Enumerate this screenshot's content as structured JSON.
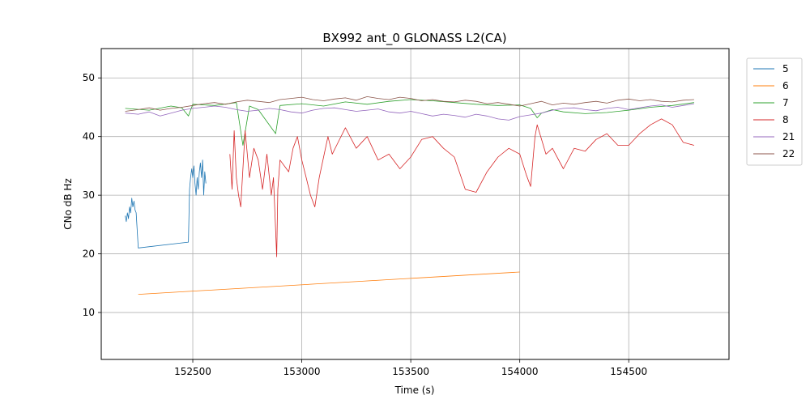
{
  "chart_data": {
    "type": "line",
    "title": "BX992 ant_0 GLONASS L2(CA)",
    "xlabel": "Time (s)",
    "ylabel": "CNo dB Hz",
    "xlim": [
      152080,
      154960
    ],
    "ylim": [
      2,
      55
    ],
    "xticks": [
      152500,
      153000,
      153500,
      154000,
      154500
    ],
    "yticks": [
      10,
      20,
      30,
      40,
      50
    ],
    "grid": true,
    "legend_position": "outside-top-right",
    "series": [
      {
        "name": "5",
        "color": "#1f77b4",
        "x": [
          152190,
          152195,
          152200,
          152205,
          152210,
          152215,
          152220,
          152225,
          152230,
          152235,
          152240,
          152245,
          152250,
          152480,
          152485,
          152490,
          152495,
          152500,
          152505,
          152510,
          152515,
          152520,
          152525,
          152530,
          152535,
          152540,
          152545,
          152550,
          152555,
          152560
        ],
        "y": [
          26.5,
          25.5,
          27,
          26,
          28,
          27,
          29.5,
          28,
          29,
          27.5,
          27,
          24,
          21,
          22,
          31,
          33,
          34.5,
          33,
          35,
          32,
          30,
          33,
          31,
          34,
          35.5,
          33,
          36,
          30,
          34,
          32
        ]
      },
      {
        "name": "6",
        "color": "#ff7f0e",
        "x": [
          152250,
          154000
        ],
        "y": [
          13.1,
          16.9
        ]
      },
      {
        "name": "7",
        "color": "#2ca02c",
        "x": [
          152190,
          152300,
          152400,
          152450,
          152480,
          152500,
          152600,
          152700,
          152730,
          152760,
          152800,
          152880,
          152900,
          153000,
          153100,
          153200,
          153300,
          153400,
          153500,
          153600,
          153700,
          153800,
          153900,
          154000,
          154050,
          154080,
          154100,
          154150,
          154200,
          154300,
          154400,
          154500,
          154600,
          154700,
          154800
        ],
        "y": [
          44.8,
          44.5,
          45.2,
          44.9,
          43.5,
          45.5,
          45.3,
          45.8,
          38.5,
          45.2,
          44.6,
          40.5,
          45.3,
          45.6,
          45.2,
          45.9,
          45.5,
          46.0,
          46.3,
          46.1,
          45.8,
          45.5,
          45.3,
          45.4,
          44.8,
          43.2,
          44.0,
          44.6,
          44.2,
          43.9,
          44.1,
          44.5,
          45.0,
          45.3,
          45.8
        ]
      },
      {
        "name": "8",
        "color": "#d62728",
        "x": [
          152670,
          152680,
          152690,
          152700,
          152710,
          152720,
          152740,
          152760,
          152780,
          152800,
          152820,
          152840,
          152860,
          152870,
          152880,
          152885,
          152890,
          152900,
          152920,
          152940,
          152960,
          152980,
          153000,
          153020,
          153040,
          153060,
          153080,
          153100,
          153120,
          153140,
          153160,
          153200,
          153250,
          153300,
          153350,
          153400,
          153450,
          153500,
          153550,
          153600,
          153650,
          153700,
          153750,
          153800,
          153850,
          153900,
          153950,
          154000,
          154030,
          154050,
          154070,
          154080,
          154100,
          154120,
          154150,
          154200,
          154250,
          154300,
          154350,
          154400,
          154450,
          154500,
          154550,
          154600,
          154650,
          154700,
          154750,
          154800
        ],
        "y": [
          37,
          31,
          41,
          33,
          30,
          28,
          41,
          33,
          38,
          36,
          31,
          37,
          30,
          33,
          24,
          19.5,
          31,
          36,
          35,
          34,
          38,
          40,
          36,
          33,
          30,
          28,
          33,
          36.5,
          40,
          37,
          38.5,
          41.5,
          38,
          40,
          36,
          37,
          34.5,
          36.5,
          39.5,
          40,
          38,
          36.5,
          31,
          30.5,
          34,
          36.5,
          38,
          37,
          33.5,
          31.5,
          40,
          42,
          39.5,
          37,
          38,
          34.5,
          38,
          37.5,
          39.5,
          40.5,
          38.5,
          38.5,
          40.5,
          42,
          43,
          42,
          39,
          38.5
        ]
      },
      {
        "name": "21",
        "color": "#9467bd",
        "x": [
          152190,
          152250,
          152300,
          152350,
          152400,
          152450,
          152500,
          152550,
          152600,
          152650,
          152700,
          152750,
          152800,
          152850,
          152900,
          152950,
          153000,
          153050,
          153100,
          153150,
          153200,
          153250,
          153300,
          153350,
          153400,
          153450,
          153500,
          153550,
          153600,
          153650,
          153700,
          153750,
          153800,
          153850,
          153900,
          153950,
          154000,
          154050,
          154100,
          154150,
          154200,
          154250,
          154300,
          154350,
          154400,
          154450,
          154500,
          154550,
          154600,
          154650,
          154700,
          154750,
          154800
        ],
        "y": [
          44.0,
          43.8,
          44.2,
          43.5,
          44.0,
          44.5,
          44.8,
          45.0,
          45.2,
          45.0,
          44.6,
          44.3,
          44.5,
          44.8,
          44.6,
          44.2,
          44.0,
          44.5,
          44.8,
          44.9,
          44.6,
          44.3,
          44.5,
          44.7,
          44.2,
          44.0,
          44.3,
          43.9,
          43.5,
          43.8,
          43.6,
          43.3,
          43.8,
          43.5,
          43.0,
          42.8,
          43.4,
          43.7,
          44.0,
          44.5,
          44.8,
          44.9,
          44.6,
          44.4,
          44.8,
          45.0,
          44.6,
          44.9,
          45.2,
          45.4,
          45.0,
          45.3,
          45.6
        ]
      },
      {
        "name": "22",
        "color": "#8c564b",
        "x": [
          152190,
          152250,
          152300,
          152350,
          152400,
          152450,
          152500,
          152550,
          152600,
          152650,
          152700,
          152750,
          152800,
          152850,
          152900,
          152950,
          153000,
          153050,
          153100,
          153150,
          153200,
          153250,
          153300,
          153350,
          153400,
          153450,
          153500,
          153550,
          153600,
          153650,
          153700,
          153750,
          153800,
          153850,
          153900,
          153950,
          154000,
          154050,
          154100,
          154150,
          154200,
          154250,
          154300,
          154350,
          154400,
          154450,
          154500,
          154550,
          154600,
          154650,
          154700,
          154750,
          154800
        ],
        "y": [
          44.3,
          44.6,
          44.9,
          44.5,
          44.8,
          45.0,
          45.3,
          45.6,
          45.8,
          45.5,
          45.9,
          46.2,
          46.0,
          45.8,
          46.3,
          46.5,
          46.7,
          46.3,
          46.1,
          46.4,
          46.6,
          46.2,
          46.8,
          46.5,
          46.3,
          46.7,
          46.5,
          46.1,
          46.3,
          46.0,
          45.9,
          46.2,
          46.0,
          45.6,
          45.8,
          45.5,
          45.2,
          45.6,
          46.0,
          45.4,
          45.7,
          45.5,
          45.8,
          46.0,
          45.7,
          46.2,
          46.4,
          46.1,
          46.3,
          46.0,
          45.9,
          46.2,
          46.3
        ]
      }
    ]
  }
}
